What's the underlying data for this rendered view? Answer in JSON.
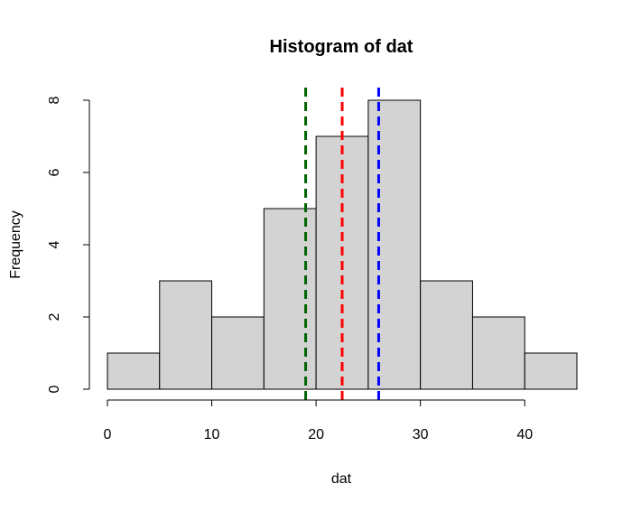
{
  "chart_data": {
    "type": "bar",
    "title": "Histogram of dat",
    "xlabel": "dat",
    "ylabel": "Frequency",
    "bins": [
      {
        "start": 0,
        "end": 5,
        "count": 1
      },
      {
        "start": 5,
        "end": 10,
        "count": 3
      },
      {
        "start": 10,
        "end": 15,
        "count": 2
      },
      {
        "start": 15,
        "end": 20,
        "count": 5
      },
      {
        "start": 20,
        "end": 25,
        "count": 7
      },
      {
        "start": 25,
        "end": 30,
        "count": 8
      },
      {
        "start": 30,
        "end": 35,
        "count": 3
      },
      {
        "start": 35,
        "end": 40,
        "count": 2
      },
      {
        "start": 40,
        "end": 45,
        "count": 1
      }
    ],
    "bar_color": "#d3d3d3",
    "xlim": [
      0,
      45
    ],
    "ylim": [
      0,
      8
    ],
    "x_ticks": [
      0,
      10,
      20,
      30,
      40
    ],
    "y_ticks": [
      0,
      2,
      4,
      6,
      8
    ],
    "reference_lines": [
      {
        "x": 19,
        "color": "#006400",
        "style": "dashed"
      },
      {
        "x": 22.5,
        "color": "#ff0000",
        "style": "dashed"
      },
      {
        "x": 26,
        "color": "#0000ff",
        "style": "dashed"
      }
    ],
    "grid": false
  }
}
